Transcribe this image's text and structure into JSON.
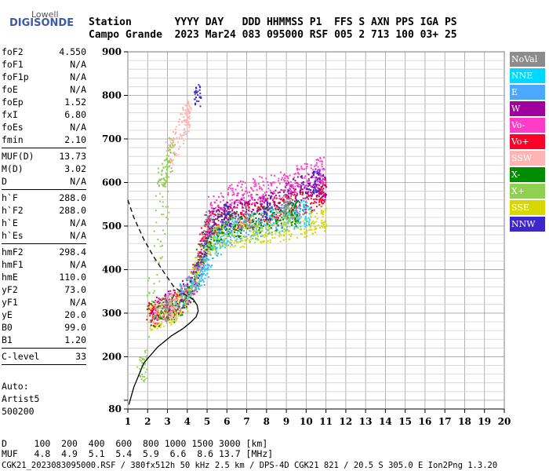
{
  "logo": {
    "brand_top": "Lowell",
    "brand_main": "DIGISONDE"
  },
  "header": {
    "row1": "Station       YYYY DAY   DDD HHMMSS P1  FFS S AXN PPS IGA PS",
    "row2": "Campo Grande  2023 Mar24 083 095000 RSF 005 2 713 100 03+ 25"
  },
  "params": [
    {
      "label": "foF2",
      "value": "4.550"
    },
    {
      "label": "foF1",
      "value": "N/A"
    },
    {
      "label": "foF1p",
      "value": "N/A"
    },
    {
      "label": "foE",
      "value": "N/A"
    },
    {
      "label": "foEp",
      "value": "1.52"
    },
    {
      "label": "fxI",
      "value": "6.80"
    },
    {
      "label": "foEs",
      "value": "N/A"
    },
    {
      "label": "fmin",
      "value": "2.10"
    },
    {
      "sep": true
    },
    {
      "label": "MUF(D)",
      "value": "13.73"
    },
    {
      "label": "M(D)",
      "value": "3.02"
    },
    {
      "label": "D",
      "value": "N/A"
    },
    {
      "sep": true
    },
    {
      "label": "h`F",
      "value": "288.0"
    },
    {
      "label": "h`F2",
      "value": "288.0"
    },
    {
      "label": "h`E",
      "value": "N/A"
    },
    {
      "label": "h`Es",
      "value": "N/A"
    },
    {
      "sep": true
    },
    {
      "label": "hmF2",
      "value": "298.4"
    },
    {
      "label": "hmF1",
      "value": "N/A"
    },
    {
      "label": "hmE",
      "value": "110.0"
    },
    {
      "label": "yF2",
      "value": "73.0"
    },
    {
      "label": "yF1",
      "value": "N/A"
    },
    {
      "label": "yE",
      "value": "20.0"
    },
    {
      "label": "B0",
      "value": "99.0"
    },
    {
      "label": "B1",
      "value": "1.20"
    },
    {
      "sep": true
    },
    {
      "label": "C-level",
      "value": "33"
    },
    {
      "sep": true
    }
  ],
  "auto": {
    "line1": "Auto:",
    "line2": "Artist5",
    "line3": "500200"
  },
  "legend": [
    {
      "label": "NoVal",
      "color": "#8c8c8c"
    },
    {
      "label": "NNE",
      "color": "#00d8ff"
    },
    {
      "label": "E",
      "color": "#4aa8ff"
    },
    {
      "label": "W",
      "color": "#a0009c"
    },
    {
      "label": "Vo-",
      "color": "#ff3cc8"
    },
    {
      "label": "Vo+",
      "color": "#ff0028"
    },
    {
      "label": "SSW",
      "color": "#ffb4b4"
    },
    {
      "label": "X-",
      "color": "#008c00"
    },
    {
      "label": "X+",
      "color": "#90d050"
    },
    {
      "label": "SSE",
      "color": "#d8d800"
    },
    {
      "label": "NNW",
      "color": "#3c28c8"
    }
  ],
  "chart_data": {
    "type": "scatter",
    "xlim": [
      1,
      20
    ],
    "ylim": [
      80,
      900
    ],
    "x_ticks": [
      1,
      2,
      3,
      4,
      5,
      6,
      7,
      8,
      9,
      10,
      11,
      12,
      13,
      14,
      15,
      16,
      17,
      18,
      19,
      20
    ],
    "y_ticks": [
      80,
      100,
      200,
      300,
      400,
      500,
      600,
      700,
      800,
      900
    ],
    "y_tick_labels": [
      80,
      200,
      300,
      400,
      500,
      600,
      700,
      800,
      900
    ],
    "grid": true,
    "profile_solid": [
      [
        1.05,
        90
      ],
      [
        1.3,
        130
      ],
      [
        1.8,
        185
      ],
      [
        2.5,
        222
      ],
      [
        3.2,
        248
      ],
      [
        3.8,
        265
      ],
      [
        4.2,
        280
      ],
      [
        4.45,
        292
      ],
      [
        4.55,
        305
      ],
      [
        4.5,
        318
      ],
      [
        4.3,
        332
      ]
    ],
    "profile_dashed": [
      [
        1.0,
        560
      ],
      [
        1.3,
        520
      ],
      [
        1.8,
        470
      ],
      [
        2.3,
        430
      ],
      [
        2.8,
        395
      ],
      [
        3.3,
        362
      ],
      [
        3.8,
        345
      ],
      [
        4.3,
        332
      ]
    ],
    "traces": [
      {
        "name": "Vo+",
        "color": "#ff0028",
        "points": [
          [
            2.0,
            300
          ],
          [
            2.3,
            302
          ],
          [
            2.6,
            305
          ],
          [
            3.0,
            312
          ],
          [
            3.4,
            322
          ],
          [
            3.8,
            340
          ],
          [
            4.2,
            360
          ],
          [
            4.5,
            400
          ],
          [
            4.8,
            460
          ],
          [
            5.0,
            500
          ],
          [
            5.3,
            510
          ],
          [
            5.8,
            515
          ],
          [
            6.3,
            520
          ],
          [
            6.8,
            525
          ],
          [
            7.3,
            528
          ],
          [
            7.8,
            532
          ],
          [
            8.3,
            538
          ],
          [
            8.8,
            545
          ],
          [
            9.3,
            550
          ],
          [
            9.8,
            558
          ],
          [
            10.3,
            565
          ],
          [
            10.8,
            575
          ]
        ]
      },
      {
        "name": "W",
        "color": "#a0009c",
        "points": [
          [
            2.1,
            310
          ],
          [
            2.8,
            320
          ],
          [
            3.5,
            335
          ],
          [
            4.0,
            350
          ],
          [
            4.6,
            410
          ],
          [
            5.1,
            505
          ],
          [
            5.6,
            520
          ],
          [
            6.2,
            530
          ],
          [
            6.8,
            535
          ],
          [
            7.5,
            540
          ],
          [
            8.2,
            550
          ],
          [
            8.8,
            560
          ],
          [
            9.2,
            580
          ],
          [
            9.8,
            590
          ],
          [
            10.4,
            600
          ],
          [
            10.9,
            590
          ]
        ]
      },
      {
        "name": "Vo-",
        "color": "#ff3cc8",
        "points": [
          [
            2.2,
            305
          ],
          [
            3.0,
            318
          ],
          [
            3.9,
            345
          ],
          [
            4.7,
            430
          ],
          [
            5.2,
            540
          ],
          [
            5.9,
            560
          ],
          [
            6.5,
            575
          ],
          [
            7.1,
            580
          ],
          [
            7.7,
            585
          ],
          [
            8.3,
            590
          ],
          [
            9.0,
            600
          ],
          [
            9.6,
            610
          ],
          [
            10.2,
            620
          ],
          [
            10.7,
            630
          ]
        ]
      },
      {
        "name": "NNE",
        "color": "#00d8ff",
        "points": [
          [
            3.5,
            330
          ],
          [
            4.1,
            360
          ],
          [
            4.6,
            390
          ],
          [
            5.0,
            420
          ],
          [
            5.5,
            470
          ],
          [
            6.0,
            490
          ],
          [
            7.0,
            500
          ],
          [
            8.0,
            510
          ],
          [
            9.0,
            520
          ],
          [
            10.0,
            530
          ]
        ]
      },
      {
        "name": "E",
        "color": "#4aa8ff",
        "points": [
          [
            3.8,
            340
          ],
          [
            4.3,
            370
          ],
          [
            4.8,
            400
          ],
          [
            5.3,
            450
          ],
          [
            5.8,
            480
          ],
          [
            6.5,
            495
          ],
          [
            7.5,
            505
          ],
          [
            8.5,
            515
          ],
          [
            9.5,
            525
          ]
        ]
      },
      {
        "name": "SSE",
        "color": "#d8d800",
        "points": [
          [
            2.0,
            290
          ],
          [
            2.5,
            295
          ],
          [
            3.2,
            305
          ],
          [
            4.0,
            330
          ],
          [
            4.8,
            440
          ],
          [
            5.5,
            480
          ],
          [
            6.2,
            480
          ],
          [
            7.0,
            482
          ],
          [
            7.8,
            490
          ],
          [
            8.6,
            495
          ],
          [
            9.4,
            500
          ],
          [
            10.2,
            510
          ],
          [
            10.9,
            520
          ]
        ]
      },
      {
        "name": "X+",
        "color": "#90d050",
        "points": [
          [
            1.6,
            170
          ],
          [
            1.8,
            175
          ],
          [
            2.6,
            600
          ],
          [
            2.8,
            620
          ],
          [
            3.0,
            650
          ],
          [
            3.2,
            690
          ],
          [
            2.3,
            300
          ],
          [
            3.1,
            310
          ],
          [
            4.0,
            335
          ],
          [
            5.0,
            470
          ],
          [
            6.0,
            490
          ],
          [
            7.0,
            495
          ],
          [
            8.0,
            505
          ],
          [
            9.0,
            515
          ]
        ]
      },
      {
        "name": "X-",
        "color": "#008c00",
        "points": [
          [
            2.0,
            295
          ],
          [
            3.0,
            305
          ],
          [
            3.9,
            325
          ],
          [
            4.9,
            460
          ],
          [
            5.6,
            500
          ],
          [
            6.4,
            505
          ],
          [
            7.4,
            512
          ],
          [
            8.4,
            520
          ],
          [
            9.4,
            530
          ]
        ]
      },
      {
        "name": "SSW",
        "color": "#ffb4b4",
        "points": [
          [
            3.0,
            660
          ],
          [
            3.4,
            700
          ],
          [
            3.8,
            740
          ],
          [
            4.0,
            760
          ],
          [
            2.4,
            305
          ],
          [
            3.3,
            318
          ]
        ]
      },
      {
        "name": "NNW",
        "color": "#3c28c8",
        "points": [
          [
            4.2,
            350
          ],
          [
            5.1,
            510
          ],
          [
            6.0,
            525
          ],
          [
            8.0,
            545
          ],
          [
            9.5,
            580
          ],
          [
            10.5,
            605
          ],
          [
            4.5,
            800
          ]
        ]
      },
      {
        "name": "NoVal",
        "color": "#8c8c8c",
        "points": [
          [
            3.0,
            308
          ],
          [
            5.0,
            505
          ],
          [
            7.0,
            520
          ],
          [
            9.0,
            545
          ]
        ]
      }
    ]
  },
  "bottom": {
    "row_d": "D     100  200  400  600  800 1000 1500 3000 [km]",
    "row_muf": "MUF   4.8  4.9  5.1  5.4  5.9  6.6  8.6 13.7 [MHz]",
    "footer": "CGK21_2023083095000.RSF / 380fx512h 50 kHz 2.5 km / DPS-4D CGK21 821 / 20.5 S 305.0 E Ion2Png 1.3.20"
  }
}
